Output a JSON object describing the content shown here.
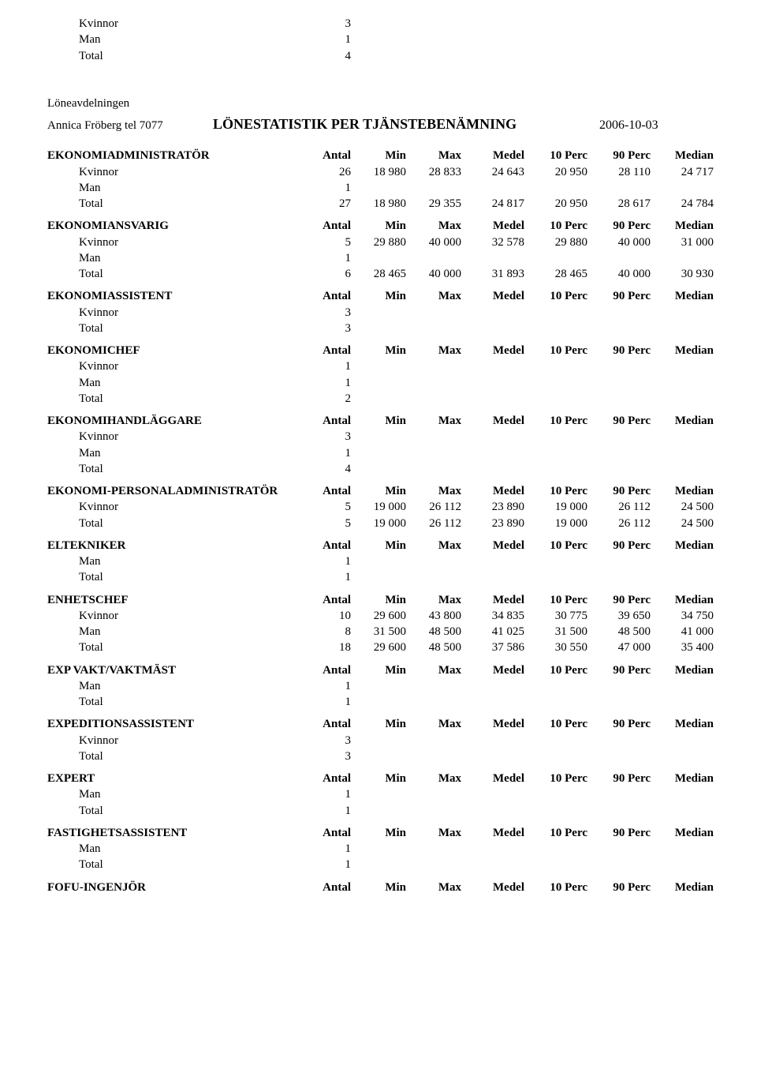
{
  "columns": [
    "Antal",
    "Min",
    "Max",
    "Medel",
    "10 Perc",
    "90 Perc",
    "Median"
  ],
  "header": {
    "dept": "Löneavdelningen",
    "contact": "Annica Fröberg tel 7077",
    "title": "LÖNESTATISTIK PER TJÄNSTEBENÄMNING",
    "date": "2006-10-03"
  },
  "top_orphan": {
    "rows": [
      {
        "label": "Kvinnor",
        "vals": [
          "3",
          "",
          "",
          "",
          "",
          "",
          ""
        ]
      },
      {
        "label": "Man",
        "vals": [
          "1",
          "",
          "",
          "",
          "",
          "",
          ""
        ]
      },
      {
        "label": "Total",
        "vals": [
          "4",
          "",
          "",
          "",
          "",
          "",
          ""
        ]
      }
    ]
  },
  "categories": [
    {
      "name": "EKONOMIADMINISTRATÖR",
      "rows": [
        {
          "label": "Kvinnor",
          "vals": [
            "26",
            "18 980",
            "28 833",
            "24 643",
            "20 950",
            "28 110",
            "24 717"
          ]
        },
        {
          "label": "Man",
          "vals": [
            "1",
            "",
            "",
            "",
            "",
            "",
            ""
          ]
        },
        {
          "label": "Total",
          "vals": [
            "27",
            "18 980",
            "29 355",
            "24 817",
            "20 950",
            "28 617",
            "24 784"
          ]
        }
      ]
    },
    {
      "name": "EKONOMIANSVARIG",
      "rows": [
        {
          "label": "Kvinnor",
          "vals": [
            "5",
            "29 880",
            "40 000",
            "32 578",
            "29 880",
            "40 000",
            "31 000"
          ]
        },
        {
          "label": "Man",
          "vals": [
            "1",
            "",
            "",
            "",
            "",
            "",
            ""
          ]
        },
        {
          "label": "Total",
          "vals": [
            "6",
            "28 465",
            "40 000",
            "31 893",
            "28 465",
            "40 000",
            "30 930"
          ]
        }
      ]
    },
    {
      "name": "EKONOMIASSISTENT",
      "rows": [
        {
          "label": "Kvinnor",
          "vals": [
            "3",
            "",
            "",
            "",
            "",
            "",
            ""
          ]
        },
        {
          "label": "Total",
          "vals": [
            "3",
            "",
            "",
            "",
            "",
            "",
            ""
          ]
        }
      ]
    },
    {
      "name": "EKONOMICHEF",
      "rows": [
        {
          "label": "Kvinnor",
          "vals": [
            "1",
            "",
            "",
            "",
            "",
            "",
            ""
          ]
        },
        {
          "label": "Man",
          "vals": [
            "1",
            "",
            "",
            "",
            "",
            "",
            ""
          ]
        },
        {
          "label": "Total",
          "vals": [
            "2",
            "",
            "",
            "",
            "",
            "",
            ""
          ]
        }
      ]
    },
    {
      "name": "EKONOMIHANDLÄGGARE",
      "rows": [
        {
          "label": "Kvinnor",
          "vals": [
            "3",
            "",
            "",
            "",
            "",
            "",
            ""
          ]
        },
        {
          "label": "Man",
          "vals": [
            "1",
            "",
            "",
            "",
            "",
            "",
            ""
          ]
        },
        {
          "label": "Total",
          "vals": [
            "4",
            "",
            "",
            "",
            "",
            "",
            ""
          ]
        }
      ]
    },
    {
      "name": "EKONOMI-PERSONALADMINISTRATÖR",
      "rows": [
        {
          "label": "Kvinnor",
          "vals": [
            "5",
            "19 000",
            "26 112",
            "23 890",
            "19 000",
            "26 112",
            "24 500"
          ]
        },
        {
          "label": "Total",
          "vals": [
            "5",
            "19 000",
            "26 112",
            "23 890",
            "19 000",
            "26 112",
            "24 500"
          ]
        }
      ]
    },
    {
      "name": "ELTEKNIKER",
      "rows": [
        {
          "label": "Man",
          "vals": [
            "1",
            "",
            "",
            "",
            "",
            "",
            ""
          ]
        },
        {
          "label": "Total",
          "vals": [
            "1",
            "",
            "",
            "",
            "",
            "",
            ""
          ]
        }
      ]
    },
    {
      "name": "ENHETSCHEF",
      "rows": [
        {
          "label": "Kvinnor",
          "vals": [
            "10",
            "29 600",
            "43 800",
            "34 835",
            "30 775",
            "39 650",
            "34 750"
          ]
        },
        {
          "label": "Man",
          "vals": [
            "8",
            "31 500",
            "48 500",
            "41 025",
            "31 500",
            "48 500",
            "41 000"
          ]
        },
        {
          "label": "Total",
          "vals": [
            "18",
            "29 600",
            "48 500",
            "37 586",
            "30 550",
            "47 000",
            "35 400"
          ]
        }
      ]
    },
    {
      "name": "EXP VAKT/VAKTMÄST",
      "rows": [
        {
          "label": "Man",
          "vals": [
            "1",
            "",
            "",
            "",
            "",
            "",
            ""
          ]
        },
        {
          "label": "Total",
          "vals": [
            "1",
            "",
            "",
            "",
            "",
            "",
            ""
          ]
        }
      ]
    },
    {
      "name": "EXPEDITIONSASSISTENT",
      "rows": [
        {
          "label": "Kvinnor",
          "vals": [
            "3",
            "",
            "",
            "",
            "",
            "",
            ""
          ]
        },
        {
          "label": "Total",
          "vals": [
            "3",
            "",
            "",
            "",
            "",
            "",
            ""
          ]
        }
      ]
    },
    {
      "name": "EXPERT",
      "rows": [
        {
          "label": "Man",
          "vals": [
            "1",
            "",
            "",
            "",
            "",
            "",
            ""
          ]
        },
        {
          "label": "Total",
          "vals": [
            "1",
            "",
            "",
            "",
            "",
            "",
            ""
          ]
        }
      ]
    },
    {
      "name": "FASTIGHETSASSISTENT",
      "rows": [
        {
          "label": "Man",
          "vals": [
            "1",
            "",
            "",
            "",
            "",
            "",
            ""
          ]
        },
        {
          "label": "Total",
          "vals": [
            "1",
            "",
            "",
            "",
            "",
            "",
            ""
          ]
        }
      ]
    },
    {
      "name": "FOFU-INGENJÖR",
      "rows": []
    }
  ]
}
